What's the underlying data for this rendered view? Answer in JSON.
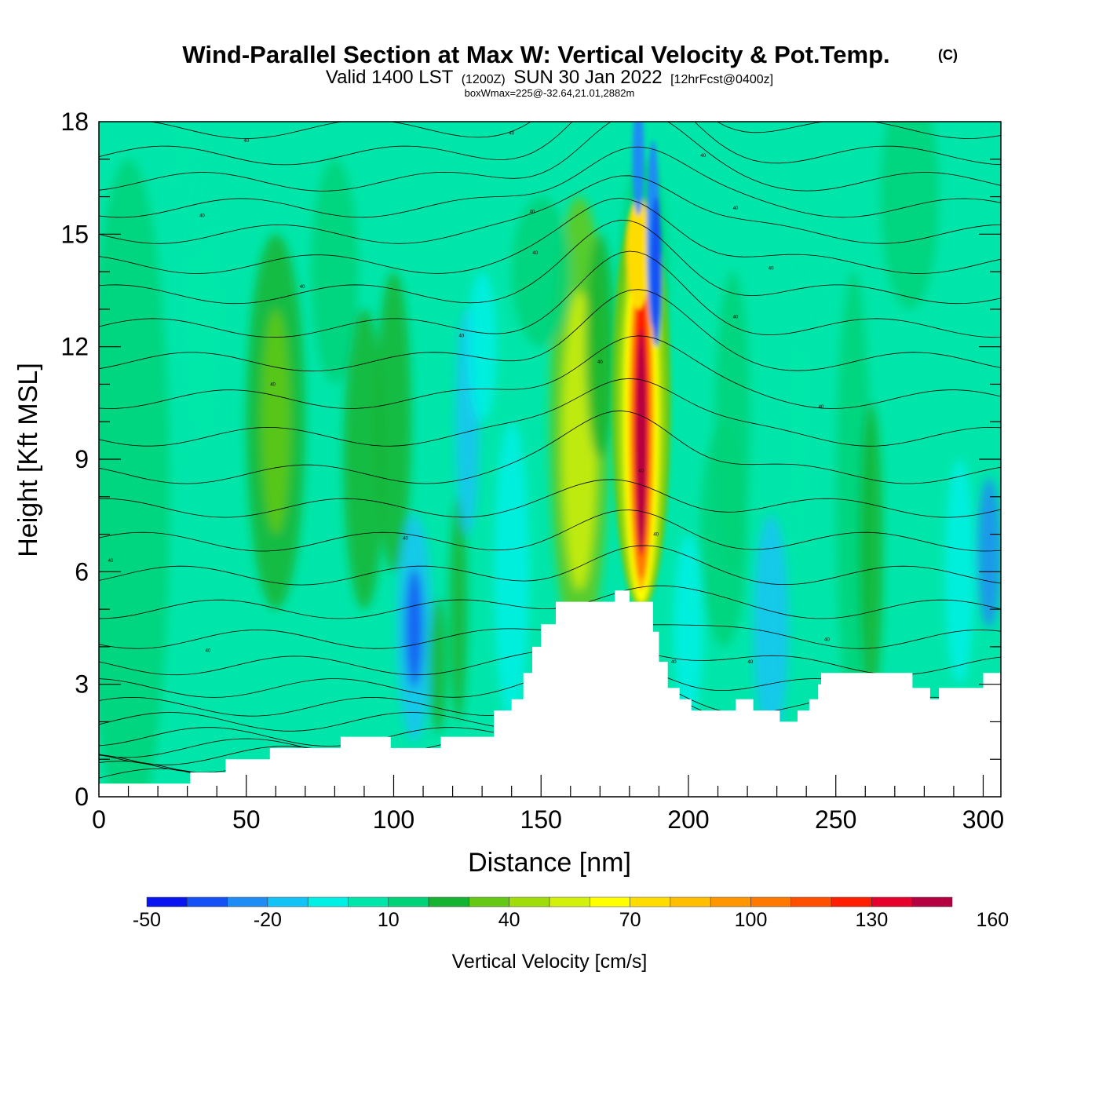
{
  "title": {
    "main": "Wind-Parallel Section at Max W: Vertical Velocity & Pot.Temp.",
    "copyright": "(C)",
    "valid_prefix": "Valid 1400 LST",
    "utc": "(1200Z)",
    "date": "SUN 30 Jan 2022",
    "forecast": "[12hrFcst@0400z]",
    "boxwmax": "boxWmax=225@-32.64,21.01,2882m"
  },
  "chart_data": {
    "type": "heatmap",
    "xlabel": "Distance [nm]",
    "ylabel": "Height [Kft MSL]",
    "xlim": [
      0,
      306
    ],
    "ylim": [
      0,
      18
    ],
    "x_ticks": [
      0,
      50,
      100,
      150,
      200,
      250,
      300
    ],
    "y_ticks": [
      0,
      3,
      6,
      9,
      12,
      15,
      18
    ],
    "colorbar": {
      "title": "Vertical Velocity [cm/s]",
      "levels": [
        -50,
        -40,
        -30,
        -20,
        -10,
        0,
        10,
        20,
        30,
        40,
        50,
        60,
        70,
        80,
        90,
        100,
        110,
        120,
        130,
        140,
        150,
        160
      ],
      "tick_labels": [
        "-50",
        "-20",
        "10",
        "40",
        "70",
        "100",
        "130",
        "160"
      ],
      "colors": [
        "#0a14f0",
        "#1450f5",
        "#1e8cf5",
        "#14c3f5",
        "#00f0e6",
        "#00e6aa",
        "#00d278",
        "#14b432",
        "#64c814",
        "#a0dc0a",
        "#d2f00a",
        "#ffff00",
        "#ffdc00",
        "#ffbe00",
        "#ff9600",
        "#ff7800",
        "#ff5000",
        "#ff1e00",
        "#e6002d",
        "#b40041"
      ]
    },
    "terrain": [
      [
        0,
        0.35
      ],
      [
        31,
        0.35
      ],
      [
        31,
        0.65
      ],
      [
        43,
        0.65
      ],
      [
        43,
        1.0
      ],
      [
        58,
        1.0
      ],
      [
        58,
        1.3
      ],
      [
        82,
        1.3
      ],
      [
        82,
        1.6
      ],
      [
        99,
        1.6
      ],
      [
        99,
        1.3
      ],
      [
        116,
        1.3
      ],
      [
        116,
        1.6
      ],
      [
        134,
        1.6
      ],
      [
        134,
        2.3
      ],
      [
        140,
        2.3
      ],
      [
        140,
        2.6
      ],
      [
        144,
        2.6
      ],
      [
        144,
        3.3
      ],
      [
        147,
        3.3
      ],
      [
        147,
        4.0
      ],
      [
        150,
        4.0
      ],
      [
        150,
        4.6
      ],
      [
        155,
        4.6
      ],
      [
        155,
        5.2
      ],
      [
        175,
        5.2
      ],
      [
        175,
        5.5
      ],
      [
        180,
        5.5
      ],
      [
        180,
        5.2
      ],
      [
        188,
        5.2
      ],
      [
        188,
        4.4
      ],
      [
        190,
        4.4
      ],
      [
        190,
        3.6
      ],
      [
        193,
        3.6
      ],
      [
        193,
        2.9
      ],
      [
        197,
        2.9
      ],
      [
        197,
        2.6
      ],
      [
        201,
        2.6
      ],
      [
        201,
        2.3
      ],
      [
        216,
        2.3
      ],
      [
        216,
        2.6
      ],
      [
        222,
        2.6
      ],
      [
        222,
        2.3
      ],
      [
        231,
        2.3
      ],
      [
        231,
        2.0
      ],
      [
        237,
        2.0
      ],
      [
        237,
        2.3
      ],
      [
        241,
        2.3
      ],
      [
        241,
        2.6
      ],
      [
        244,
        2.6
      ],
      [
        244,
        3.0
      ],
      [
        245,
        3.0
      ],
      [
        245,
        3.3
      ],
      [
        276,
        3.3
      ],
      [
        276,
        2.9
      ],
      [
        282,
        2.9
      ],
      [
        282,
        2.6
      ],
      [
        285,
        2.6
      ],
      [
        285,
        2.9
      ],
      [
        300,
        2.9
      ],
      [
        300,
        3.3
      ],
      [
        306,
        3.3
      ]
    ],
    "theta_contour_labels": [
      "40",
      "40",
      "40",
      "40",
      "40",
      "40",
      "40",
      "40",
      "40",
      "40",
      "40",
      "40",
      "40",
      "40",
      "40",
      "40",
      "40",
      "40",
      "40",
      "40",
      "40",
      "40",
      "40",
      "40",
      "40",
      "40"
    ]
  }
}
